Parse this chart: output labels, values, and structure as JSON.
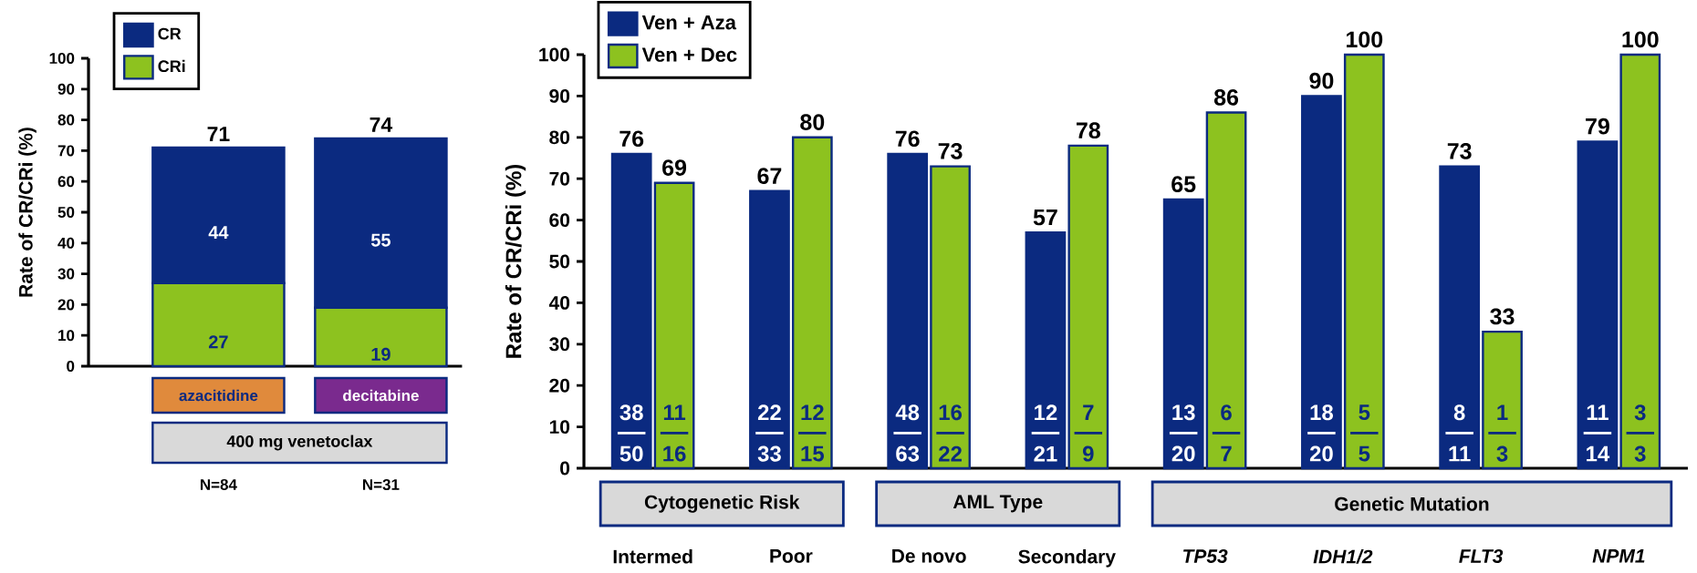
{
  "chart_data": [
    {
      "type": "bar",
      "stacked": true,
      "ylabel": "Rate of CR/CRi (%)",
      "categories": [
        "azacitidine",
        "decitabine"
      ],
      "series": [
        {
          "name": "CRi",
          "color": "#8DC21F",
          "values": [
            27,
            19
          ]
        },
        {
          "name": "CR",
          "color": "#0B2A80",
          "values": [
            44,
            55
          ]
        }
      ],
      "totals": [
        "71",
        "74"
      ],
      "data_labels": true,
      "ylim": [
        0,
        100
      ],
      "yticks": [
        0,
        10,
        20,
        30,
        40,
        50,
        60,
        70,
        80,
        90,
        100
      ],
      "legend": "top left",
      "annotations": [
        "400 mg venetoclax",
        "N=84",
        "N=31"
      ]
    },
    {
      "type": "bar",
      "ylabel": "Rate of CR/CRi (%)",
      "categories": [
        "Intermed",
        "Poor",
        "De novo",
        "Secondary",
        "TP53",
        "IDH1/2",
        "FLT3",
        "NPM1"
      ],
      "series": [
        {
          "name": "Ven + Aza",
          "color": "#0B2A80",
          "values": [
            76,
            67,
            76,
            57,
            65,
            90,
            73,
            79
          ]
        },
        {
          "name": "Ven + Dec",
          "color": "#8DC21F",
          "values": [
            69,
            80,
            73,
            78,
            86,
            100,
            33,
            100
          ]
        }
      ],
      "data_labels": true,
      "ylim": [
        0,
        100
      ],
      "yticks": [
        0,
        10,
        20,
        30,
        40,
        50,
        60,
        70,
        80,
        90,
        100
      ],
      "legend": "top left",
      "annotations": [
        "Cytogenetic Risk",
        "AML Type",
        "Genetic Mutation",
        {
          "text": "38",
          "x": "Intermed",
          "y": 13.5
        },
        {
          "text": "50",
          "x": "Intermed",
          "y": 3.5
        },
        {
          "text": "11",
          "x": "Intermed",
          "y": 13.5
        },
        {
          "text": "16",
          "x": "Intermed",
          "y": 3.5
        },
        {
          "text": "22",
          "x": "Poor",
          "y": 13.5
        },
        {
          "text": "33",
          "x": "Poor",
          "y": 3.5
        },
        {
          "text": "12",
          "x": "Poor",
          "y": 13.5
        },
        {
          "text": "15",
          "x": "Poor",
          "y": 3.5
        },
        {
          "text": "48",
          "x": "De novo",
          "y": 13.5
        },
        {
          "text": "63",
          "x": "De novo",
          "y": 3.5
        },
        {
          "text": "16",
          "x": "De novo",
          "y": 13.5
        },
        {
          "text": "22",
          "x": "De novo",
          "y": 3.5
        },
        {
          "text": "12",
          "x": "Secondary",
          "y": 13.5
        },
        {
          "text": "21",
          "x": "Secondary",
          "y": 3.5
        },
        {
          "text": "7",
          "x": "Secondary",
          "y": 13.5
        },
        {
          "text": "9",
          "x": "Secondary",
          "y": 3.5
        },
        {
          "text": "13",
          "x": "TP53",
          "y": 13.5
        },
        {
          "text": "20",
          "x": "TP53",
          "y": 3.5
        },
        {
          "text": "6",
          "x": "TP53",
          "y": 13.5
        },
        {
          "text": "7",
          "x": "TP53",
          "y": 3.5
        },
        {
          "text": "18",
          "x": "IDH1/2",
          "y": 13.5
        },
        {
          "text": "20",
          "x": "IDH1/2",
          "y": 3.5
        },
        {
          "text": "5",
          "x": "IDH1/2",
          "y": 13.5
        },
        {
          "text": "5",
          "x": "IDH1/2",
          "y": 3.5
        },
        {
          "text": "8",
          "x": "FLT3",
          "y": 13.5
        },
        {
          "text": "11",
          "x": "FLT3",
          "y": 3.5
        },
        {
          "text": "1",
          "x": "FLT3",
          "y": 13.5
        },
        {
          "text": "3",
          "x": "FLT3",
          "y": 3.5
        },
        {
          "text": "11",
          "x": "NPM1",
          "y": 13.5
        },
        {
          "text": "14",
          "x": "NPM1",
          "y": 3.5
        },
        {
          "text": "3",
          "x": "NPM1",
          "y": 13.5
        },
        {
          "text": "3",
          "x": "NPM1",
          "y": 3.5
        }
      ]
    }
  ]
}
